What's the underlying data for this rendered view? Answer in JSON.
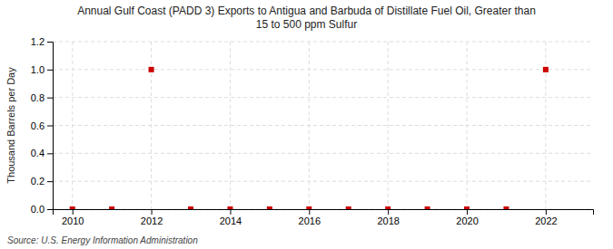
{
  "chart_data": {
    "type": "scatter",
    "title": "Annual Gulf Coast (PADD 3) Exports to Antigua and Barbuda of Distillate Fuel Oil, Greater than\n15 to 500 ppm Sulfur",
    "ylabel": "Thousand Barrels per Day",
    "source": "Source: U.S. Energy Information Administration",
    "x": [
      2010,
      2011,
      2012,
      2013,
      2014,
      2015,
      2016,
      2017,
      2018,
      2019,
      2020,
      2021,
      2022
    ],
    "values": [
      0.0,
      0.0,
      1.0,
      0.0,
      0.0,
      0.0,
      0.0,
      0.0,
      0.0,
      0.0,
      0.0,
      0.0,
      1.0
    ],
    "color": "#cc0000",
    "marker": "square",
    "xlim": [
      2009.5,
      2023.2
    ],
    "ylim": [
      0.0,
      1.2
    ],
    "xticks": [
      2010,
      2012,
      2014,
      2016,
      2018,
      2020,
      2022
    ],
    "yticks": [
      {
        "value": 0.0,
        "label": "0.0"
      },
      0.2,
      0.4,
      0.6,
      0.8,
      {
        "value": 1.0,
        "label": "1.0"
      },
      1.2
    ],
    "grid": true
  }
}
